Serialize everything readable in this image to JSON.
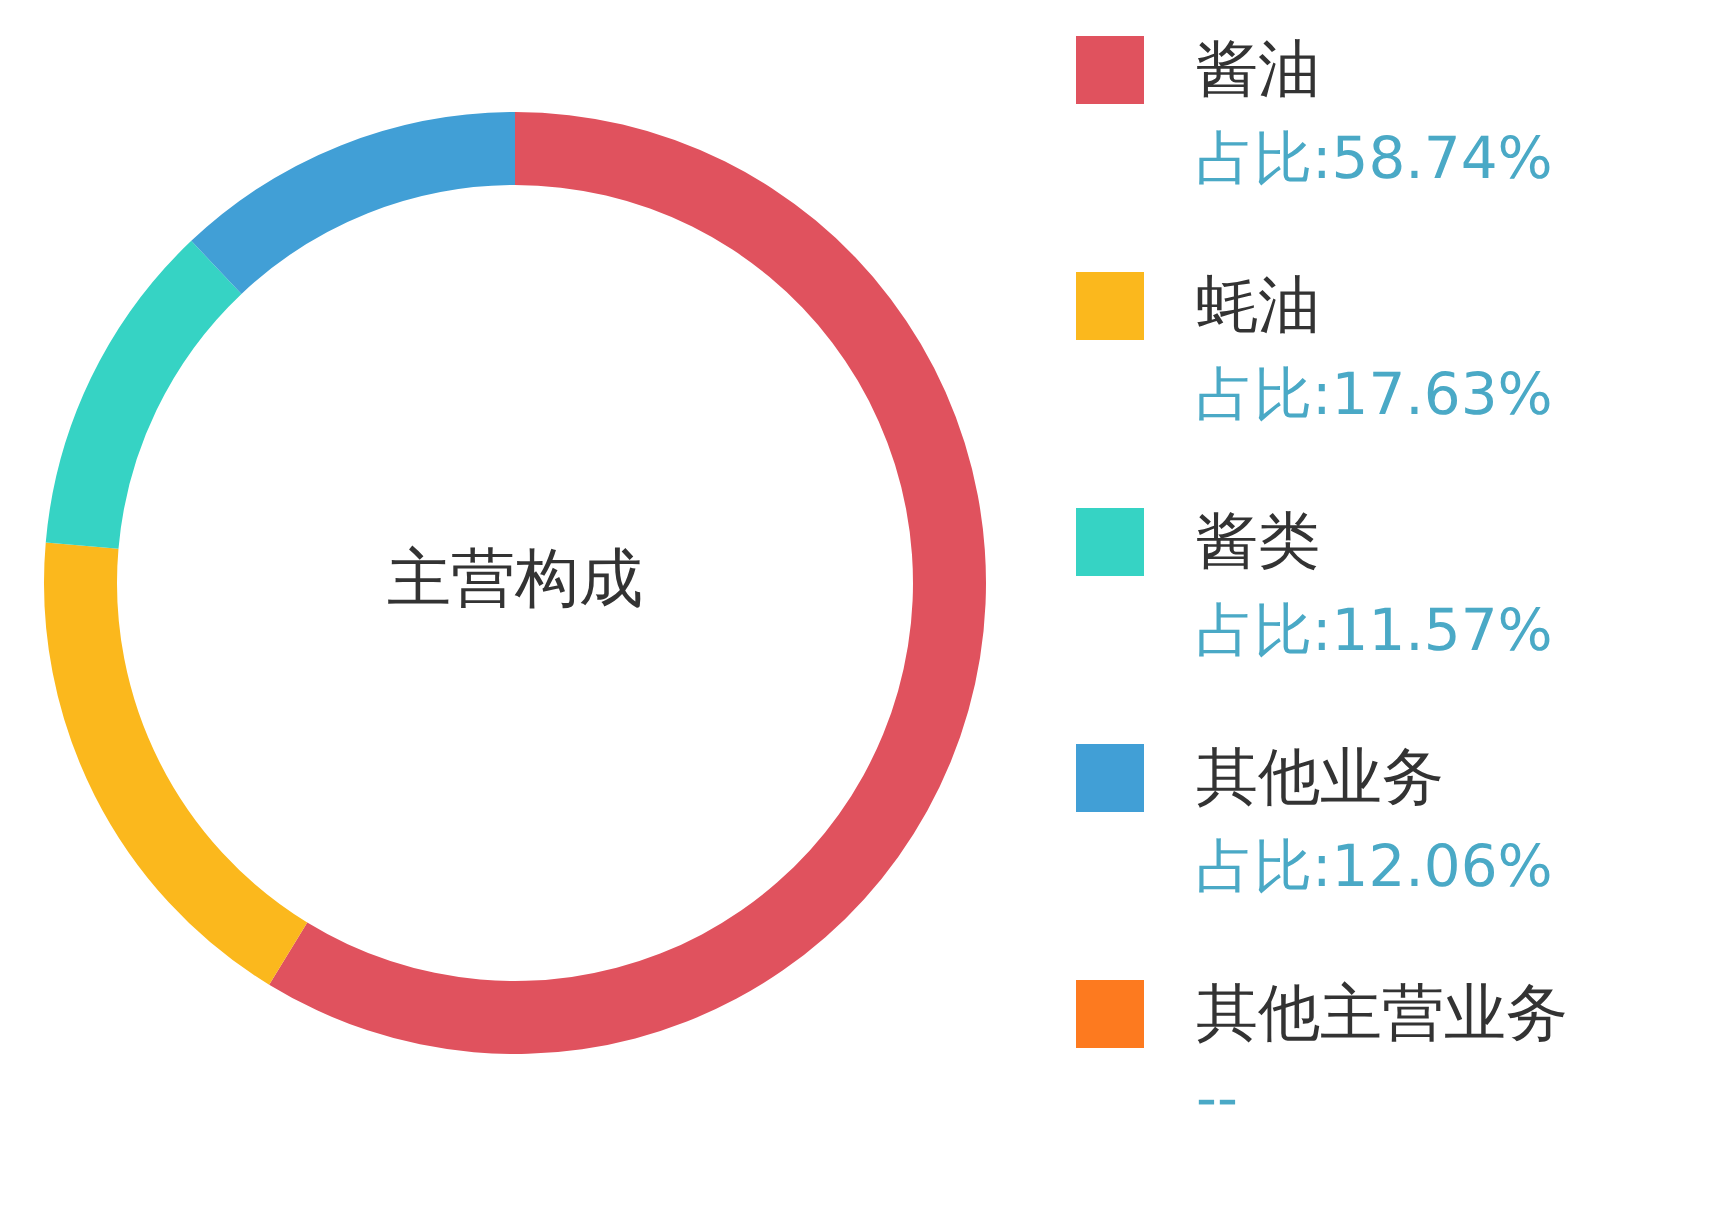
{
  "chart_data": {
    "type": "donut",
    "title": "主营构成",
    "categories": [
      "酱油",
      "蚝油",
      "酱类",
      "其他业务",
      "其他主营业务"
    ],
    "values": [
      58.74,
      17.63,
      11.57,
      12.06,
      null
    ],
    "value_labels": [
      "占比:58.74%",
      "占比:17.63%",
      "占比:11.57%",
      "占比:12.06%",
      "--"
    ],
    "colors": [
      "#e0525e",
      "#fbb81d",
      "#36d3c4",
      "#419fd6",
      "#fd7a1f"
    ],
    "legend": "right"
  }
}
